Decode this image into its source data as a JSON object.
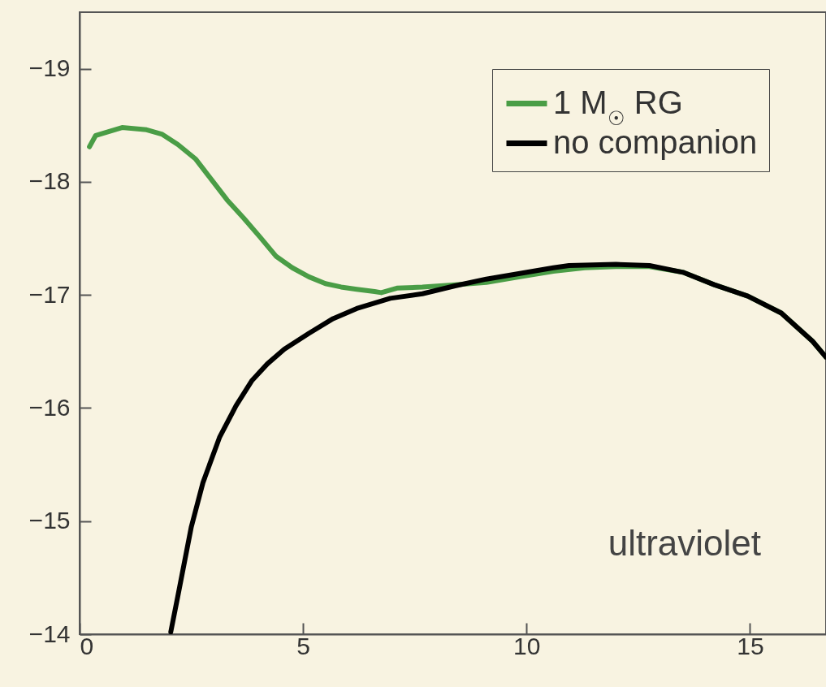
{
  "chart_data": {
    "type": "line",
    "xlim": [
      0,
      16.7
    ],
    "xticks": [
      0,
      5,
      10,
      15
    ],
    "ylim": [
      -14,
      -19.5
    ],
    "yticks": [
      -19,
      -18,
      -17,
      -16,
      -15,
      -14
    ],
    "grid": false,
    "legend": "top right",
    "annotations": [
      "ultraviolet"
    ],
    "series": [
      {
        "name": "1 M$_{☉}$ RG",
        "color": "#4a9d46",
        "x": [
          0.22,
          0.36,
          0.95,
          1.5,
          1.85,
          2.2,
          2.6,
          2.95,
          3.3,
          3.67,
          4.04,
          4.4,
          4.76,
          5.13,
          5.5,
          5.85,
          6.2,
          6.6,
          6.75,
          7.1,
          7.67,
          8.4,
          9.1,
          9.85,
          10.6,
          11.3,
          12.0,
          12.75,
          13.5,
          14.2,
          14.95,
          15.7,
          16.4,
          16.7
        ],
        "values": [
          -18.31,
          -18.41,
          -18.48,
          -18.46,
          -18.42,
          -18.33,
          -18.2,
          -18.02,
          -17.84,
          -17.68,
          -17.51,
          -17.34,
          -17.24,
          -17.16,
          -17.1,
          -17.07,
          -17.05,
          -17.03,
          -17.02,
          -17.06,
          -17.07,
          -17.09,
          -17.11,
          -17.16,
          -17.21,
          -17.24,
          -17.25,
          -17.25,
          -17.2,
          -17.09,
          -16.99,
          -16.84,
          -16.59,
          -16.45
        ]
      },
      {
        "name": "no companion",
        "color": "#000000",
        "x": [
          2.04,
          2.2,
          2.5,
          2.76,
          3.13,
          3.5,
          3.85,
          4.2,
          4.58,
          5.13,
          5.67,
          6.2,
          6.95,
          7.67,
          8.4,
          9.1,
          9.85,
          10.6,
          10.95,
          12.0,
          12.75,
          13.5,
          14.2,
          14.95,
          15.7,
          16.4,
          16.7
        ],
        "values": [
          -14.02,
          -14.34,
          -14.95,
          -15.34,
          -15.74,
          -16.02,
          -16.24,
          -16.39,
          -16.52,
          -16.66,
          -16.79,
          -16.88,
          -16.97,
          -17.01,
          -17.08,
          -17.14,
          -17.19,
          -17.24,
          -17.26,
          -17.27,
          -17.26,
          -17.2,
          -17.09,
          -16.99,
          -16.84,
          -16.59,
          -16.45
        ]
      }
    ]
  }
}
